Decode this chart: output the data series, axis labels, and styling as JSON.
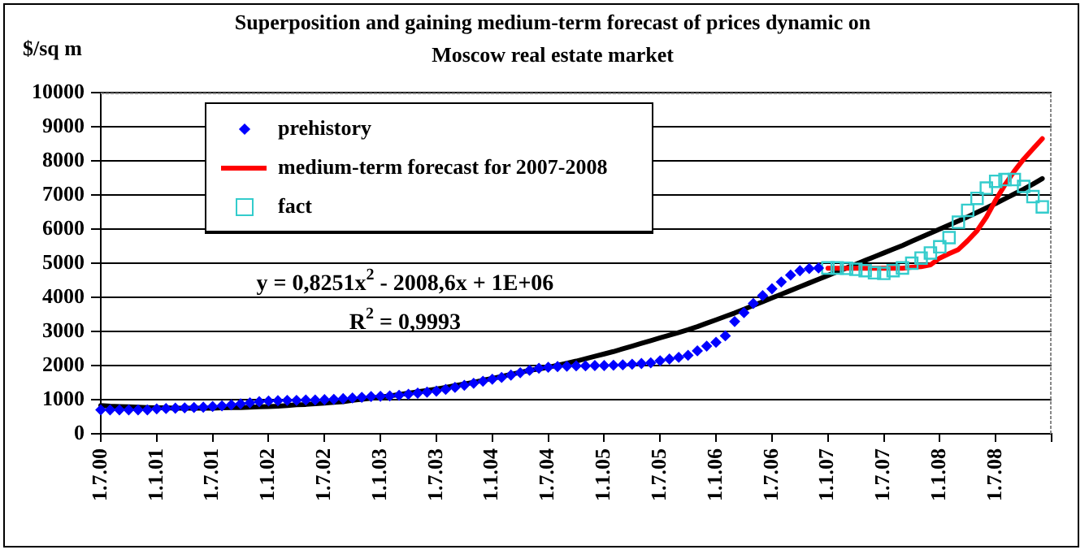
{
  "chart_data": {
    "type": "line",
    "title": "Superposition and gaining medium-term forecast of prices dynamic on Moscow real estate market",
    "ylabel": "$/sq m",
    "categories": [
      "1.7.00",
      null,
      null,
      null,
      null,
      null,
      "1.1.01",
      null,
      null,
      null,
      null,
      null,
      "1.7.01",
      null,
      null,
      null,
      null,
      null,
      "1.1.02",
      null,
      null,
      null,
      null,
      null,
      "1.7.02",
      null,
      null,
      null,
      null,
      null,
      "1.1.03",
      null,
      null,
      null,
      null,
      null,
      "1.7.03",
      null,
      null,
      null,
      null,
      null,
      "1.1.04",
      null,
      null,
      null,
      null,
      null,
      "1.7.04",
      null,
      null,
      null,
      null,
      null,
      "1.1.05",
      null,
      null,
      null,
      null,
      null,
      "1.7.05",
      null,
      null,
      null,
      null,
      null,
      "1.1.06",
      null,
      null,
      null,
      null,
      null,
      "1.7.06",
      null,
      null,
      null,
      null,
      null,
      "1.1.07",
      null,
      null,
      null,
      null,
      null,
      "1.7.07",
      null,
      null,
      null,
      null,
      null,
      "1.1.08",
      null,
      null,
      null,
      null,
      null,
      "1.7.08",
      null,
      null,
      null,
      null,
      null,
      null
    ],
    "series": [
      {
        "name": "prehistory",
        "type": "scatter",
        "marker": "diamond",
        "color": "#0000ff",
        "values": [
          700,
          700,
          700,
          700,
          700,
          700,
          730,
          740,
          750,
          760,
          770,
          780,
          800,
          820,
          850,
          880,
          910,
          940,
          960,
          970,
          980,
          980,
          990,
          990,
          1000,
          1010,
          1030,
          1050,
          1070,
          1090,
          1100,
          1110,
          1130,
          1160,
          1190,
          1220,
          1250,
          1300,
          1360,
          1420,
          1480,
          1540,
          1600,
          1650,
          1720,
          1790,
          1860,
          1920,
          1950,
          1970,
          1980,
          1990,
          1990,
          2000,
          2000,
          2010,
          2020,
          2040,
          2060,
          2080,
          2140,
          2190,
          2240,
          2300,
          2430,
          2570,
          2680,
          2870,
          3290,
          3550,
          3820,
          4050,
          4250,
          4450,
          4650,
          4780,
          4840,
          4860,
          null,
          null,
          null,
          null,
          null,
          null,
          null,
          null,
          null,
          null,
          null,
          null,
          null,
          null,
          null,
          null,
          null,
          null,
          null,
          null,
          null,
          null,
          null,
          null,
          null
        ]
      },
      {
        "name": "medium-term forecast for 2007-2008",
        "type": "line",
        "color": "#ff0000",
        "values": [
          null,
          null,
          null,
          null,
          null,
          null,
          null,
          null,
          null,
          null,
          null,
          null,
          null,
          null,
          null,
          null,
          null,
          null,
          null,
          null,
          null,
          null,
          null,
          null,
          null,
          null,
          null,
          null,
          null,
          null,
          null,
          null,
          null,
          null,
          null,
          null,
          null,
          null,
          null,
          null,
          null,
          null,
          null,
          null,
          null,
          null,
          null,
          null,
          null,
          null,
          null,
          null,
          null,
          null,
          null,
          null,
          null,
          null,
          null,
          null,
          null,
          null,
          null,
          null,
          null,
          null,
          null,
          null,
          null,
          null,
          null,
          null,
          null,
          null,
          null,
          null,
          null,
          null,
          4850,
          4850,
          4850,
          4850,
          4850,
          4850,
          4850,
          4850,
          4850,
          4880,
          4900,
          4950,
          5150,
          5280,
          5400,
          5660,
          5950,
          6350,
          6850,
          7300,
          7700,
          8050,
          8350,
          8650,
          null
        ]
      },
      {
        "name": "fact",
        "type": "scatter",
        "marker": "square",
        "color": "#33cccc",
        "values": [
          null,
          null,
          null,
          null,
          null,
          null,
          null,
          null,
          null,
          null,
          null,
          null,
          null,
          null,
          null,
          null,
          null,
          null,
          null,
          null,
          null,
          null,
          null,
          null,
          null,
          null,
          null,
          null,
          null,
          null,
          null,
          null,
          null,
          null,
          null,
          null,
          null,
          null,
          null,
          null,
          null,
          null,
          null,
          null,
          null,
          null,
          null,
          null,
          null,
          null,
          null,
          null,
          null,
          null,
          null,
          null,
          null,
          null,
          null,
          null,
          null,
          null,
          null,
          null,
          null,
          null,
          null,
          null,
          null,
          null,
          null,
          null,
          null,
          null,
          null,
          null,
          null,
          null,
          4860,
          4860,
          4850,
          4820,
          4780,
          4720,
          4700,
          4780,
          4860,
          5000,
          5150,
          5300,
          5480,
          5750,
          6200,
          6550,
          6900,
          7200,
          7400,
          7450,
          7450,
          7250,
          6950,
          6650,
          null
        ]
      },
      {
        "type": "line",
        "color": "#000000",
        "values": [
          830,
          810,
          800,
          790,
          780,
          770,
          760,
          760,
          750,
          750,
          750,
          750,
          750,
          760,
          770,
          770,
          780,
          790,
          800,
          810,
          830,
          850,
          860,
          880,
          900,
          920,
          940,
          980,
          1010,
          1040,
          1080,
          1110,
          1150,
          1190,
          1230,
          1270,
          1310,
          1360,
          1410,
          1460,
          1510,
          1570,
          1620,
          1680,
          1740,
          1800,
          1860,
          1900,
          1950,
          2010,
          2070,
          2130,
          2200,
          2270,
          2340,
          2410,
          2490,
          2570,
          2650,
          2730,
          2810,
          2890,
          2970,
          3050,
          3140,
          3240,
          3340,
          3440,
          3540,
          3650,
          3760,
          3870,
          3980,
          4090,
          4200,
          4310,
          4420,
          4530,
          4640,
          4750,
          4860,
          4970,
          5080,
          5190,
          5300,
          5410,
          5520,
          5640,
          5760,
          5880,
          6000,
          6120,
          6240,
          6360,
          6490,
          6620,
          6750,
          6890,
          7030,
          7170,
          7320,
          7480,
          null
        ]
      }
    ],
    "ylim": [
      0,
      10000
    ],
    "yticks": [
      0,
      1000,
      2000,
      3000,
      4000,
      5000,
      6000,
      7000,
      8000,
      9000,
      10000
    ],
    "grid": "y",
    "legend": "top left",
    "annotations": [
      "y = 0,8251x$^{2}$ - 2008,6x + 1E+06",
      "R$^{2}$ = 0,9993"
    ]
  }
}
